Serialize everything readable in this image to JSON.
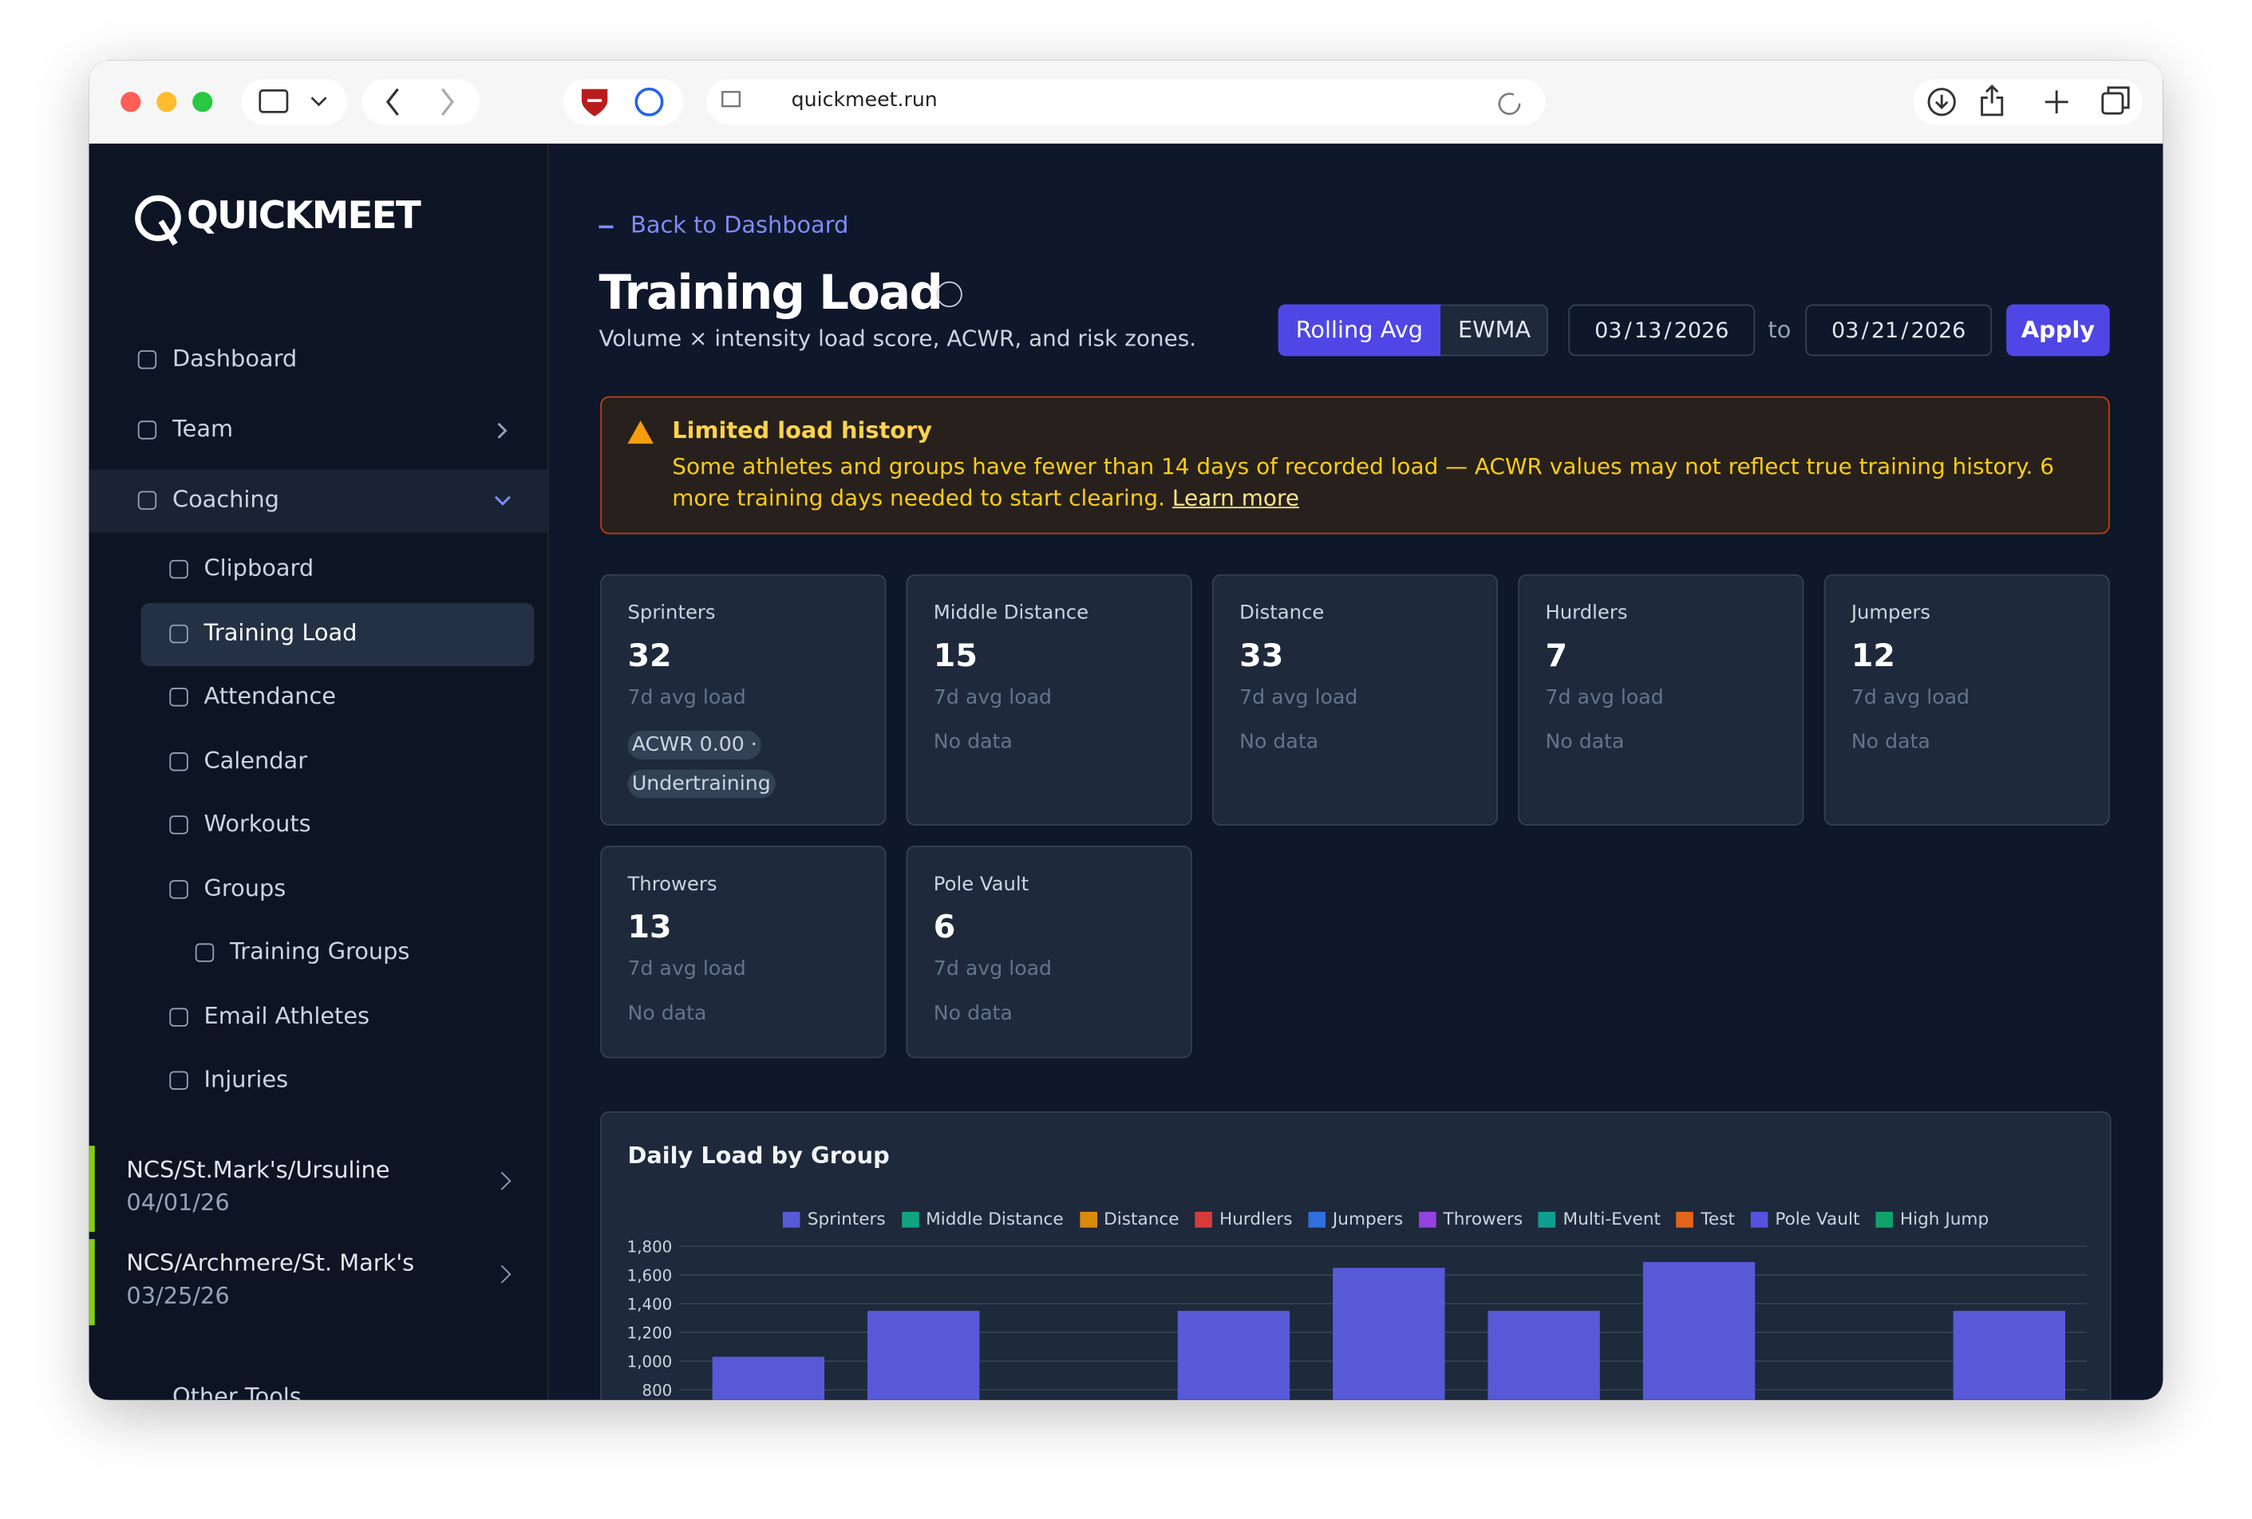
{
  "browser": {
    "url": "quickmeet.run"
  },
  "sidebar": {
    "logo": "QUICKMEET",
    "nav": [
      {
        "label": "Dashboard",
        "level": 0
      },
      {
        "label": "Team",
        "level": 0
      },
      {
        "label": "Coaching",
        "level": 0
      },
      {
        "label": "Clipboard",
        "level": 1
      },
      {
        "label": "Training Load",
        "level": 1
      },
      {
        "label": "Attendance",
        "level": 1
      },
      {
        "label": "Calendar",
        "level": 1
      },
      {
        "label": "Workouts",
        "level": 1
      },
      {
        "label": "Groups",
        "level": 1
      },
      {
        "label": "Training Groups",
        "level": 2
      },
      {
        "label": "Email Athletes",
        "level": 1
      },
      {
        "label": "Injuries",
        "level": 1
      }
    ],
    "meets": [
      {
        "name": "NCS/St.Mark's/Ursuline",
        "date": "04/01/26"
      },
      {
        "name": "NCS/Archmere/St. Mark's",
        "date": "03/25/26"
      }
    ],
    "other": "Other Tools"
  },
  "header": {
    "back": "Back to Dashboard",
    "title": "Training Load",
    "subtitle": "Volume × intensity load score, ACWR, and risk zones.",
    "modes": [
      "Rolling Avg",
      "EWMA"
    ],
    "date_from": "03 / 13 / 2026",
    "to": "to",
    "date_to": "03 / 21 / 2026",
    "apply": "Apply"
  },
  "alert": {
    "title": "Limited load history",
    "text": "Some athletes and groups have fewer than 14 days of recorded load — ACWR values may not reflect true training history. 6 more training days needed to start clearing.",
    "link": "Learn more"
  },
  "cards": [
    {
      "name": "Sprinters",
      "value": 32,
      "caption": "7d avg load",
      "status": "ACWR 0.00 · Undertraining"
    },
    {
      "name": "Middle Distance",
      "value": 15,
      "caption": "7d avg load",
      "status": "No data"
    },
    {
      "name": "Distance",
      "value": 33,
      "caption": "7d avg load",
      "status": "No data"
    },
    {
      "name": "Hurdlers",
      "value": 7,
      "caption": "7d avg load",
      "status": "No data"
    },
    {
      "name": "Jumpers",
      "value": 12,
      "caption": "7d avg load",
      "status": "No data"
    },
    {
      "name": "Throwers",
      "value": 13,
      "caption": "7d avg load",
      "status": "No data"
    },
    {
      "name": "Pole Vault",
      "value": 6,
      "caption": "7d avg load",
      "status": "No data"
    }
  ],
  "chart_data": {
    "type": "bar",
    "title": "Daily Load by Group",
    "categories": [
      null,
      null,
      null,
      null,
      null,
      null,
      null,
      null,
      null
    ],
    "series": [
      {
        "name": "Sprinters",
        "color": "#5859d6",
        "values": [
          1030,
          1350,
          null,
          1350,
          1650,
          1350,
          1690,
          null,
          1350
        ]
      },
      {
        "name": "Middle Distance",
        "color": "#10a37f",
        "values": [
          null,
          null,
          null,
          null,
          null,
          null,
          null,
          null,
          null
        ]
      },
      {
        "name": "Distance",
        "color": "#d98b0b",
        "values": [
          null,
          null,
          null,
          null,
          null,
          null,
          null,
          null,
          null
        ]
      },
      {
        "name": "Hurdlers",
        "color": "#d63b3b",
        "values": [
          null,
          null,
          null,
          null,
          null,
          null,
          null,
          null,
          null
        ]
      },
      {
        "name": "Jumpers",
        "color": "#2f6fe0",
        "values": [
          null,
          null,
          null,
          null,
          null,
          null,
          null,
          null,
          null
        ]
      },
      {
        "name": "Throwers",
        "color": "#9341e0",
        "values": [
          null,
          null,
          null,
          null,
          null,
          null,
          null,
          null,
          null
        ]
      },
      {
        "name": "Multi-Event",
        "color": "#0f9e90",
        "values": [
          null,
          null,
          null,
          null,
          null,
          null,
          null,
          null,
          null
        ]
      },
      {
        "name": "Test",
        "color": "#e0651a",
        "values": [
          null,
          null,
          null,
          null,
          null,
          null,
          null,
          null,
          null
        ]
      },
      {
        "name": "Pole Vault",
        "color": "#5552e0",
        "values": [
          null,
          null,
          null,
          null,
          null,
          null,
          null,
          null,
          null
        ]
      },
      {
        "name": "High Jump",
        "color": "#11a06a",
        "values": [
          null,
          null,
          null,
          null,
          null,
          null,
          null,
          null,
          null
        ]
      }
    ],
    "ylim": [
      0,
      1800
    ],
    "yticks": [
      {
        "value": 800,
        "label": "800"
      },
      {
        "value": 1000,
        "label": "1,000"
      },
      {
        "value": 1200,
        "label": "1,200"
      },
      {
        "value": 1400,
        "label": "1,400"
      },
      {
        "value": 1600,
        "label": "1,600"
      },
      {
        "value": 1800,
        "label": "1,800"
      }
    ],
    "grid": true,
    "legend": "top"
  }
}
